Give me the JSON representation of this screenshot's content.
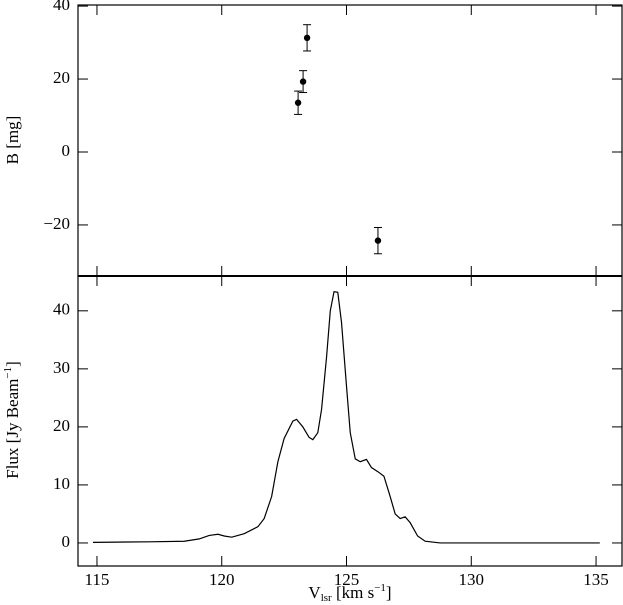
{
  "chart_data": [
    {
      "type": "errorbar",
      "ylabel": "B [mg]",
      "color": "#000000",
      "x": [
        123.06,
        123.26,
        123.42,
        126.26
      ],
      "values": [
        13.5,
        19.3,
        31.3,
        -24.3
      ],
      "errors": [
        3.2,
        3.0,
        3.6,
        3.6
      ],
      "xlim": [
        114.24,
        136.04
      ],
      "ylim": [
        -34,
        40.3
      ],
      "yticks": [
        {
          "value": -20,
          "label": "−20"
        },
        0,
        20,
        40
      ]
    },
    {
      "type": "line",
      "ylabel": [
        "Flux [Jy Beam",
        "−1",
        "]"
      ],
      "xlabel": [
        "V",
        "lsr",
        " [km s",
        "−1",
        "]"
      ],
      "color": "#000000",
      "x": [
        114.84,
        117.1,
        118.5,
        119.1,
        119.5,
        119.85,
        120.1,
        120.4,
        120.9,
        121.45,
        121.7,
        122.0,
        122.25,
        122.5,
        122.85,
        123.0,
        123.25,
        123.5,
        123.65,
        123.85,
        124.0,
        124.2,
        124.35,
        124.5,
        124.65,
        124.8,
        125.0,
        125.15,
        125.35,
        125.55,
        125.8,
        126.0,
        126.25,
        126.5,
        126.75,
        126.95,
        127.15,
        127.35,
        127.55,
        127.85,
        128.15,
        128.75,
        135.15
      ],
      "values": [
        0.1,
        0.2,
        0.3,
        0.7,
        1.3,
        1.5,
        1.2,
        1.0,
        1.6,
        2.8,
        4.2,
        8,
        14,
        18,
        21,
        21.3,
        20,
        18.2,
        17.8,
        19,
        23,
        32,
        40,
        43.3,
        43.2,
        38,
        27,
        19,
        14.5,
        14.0,
        14.4,
        13,
        12.3,
        11.5,
        8,
        5,
        4.2,
        4.5,
        3.5,
        1.2,
        0.3,
        0,
        0
      ],
      "xlim": [
        114.24,
        136.04
      ],
      "ylim": [
        -3.97,
        46
      ],
      "xticks": [
        115,
        120,
        125,
        130,
        135
      ],
      "yticks": [
        0,
        10,
        20,
        30,
        40
      ]
    }
  ]
}
